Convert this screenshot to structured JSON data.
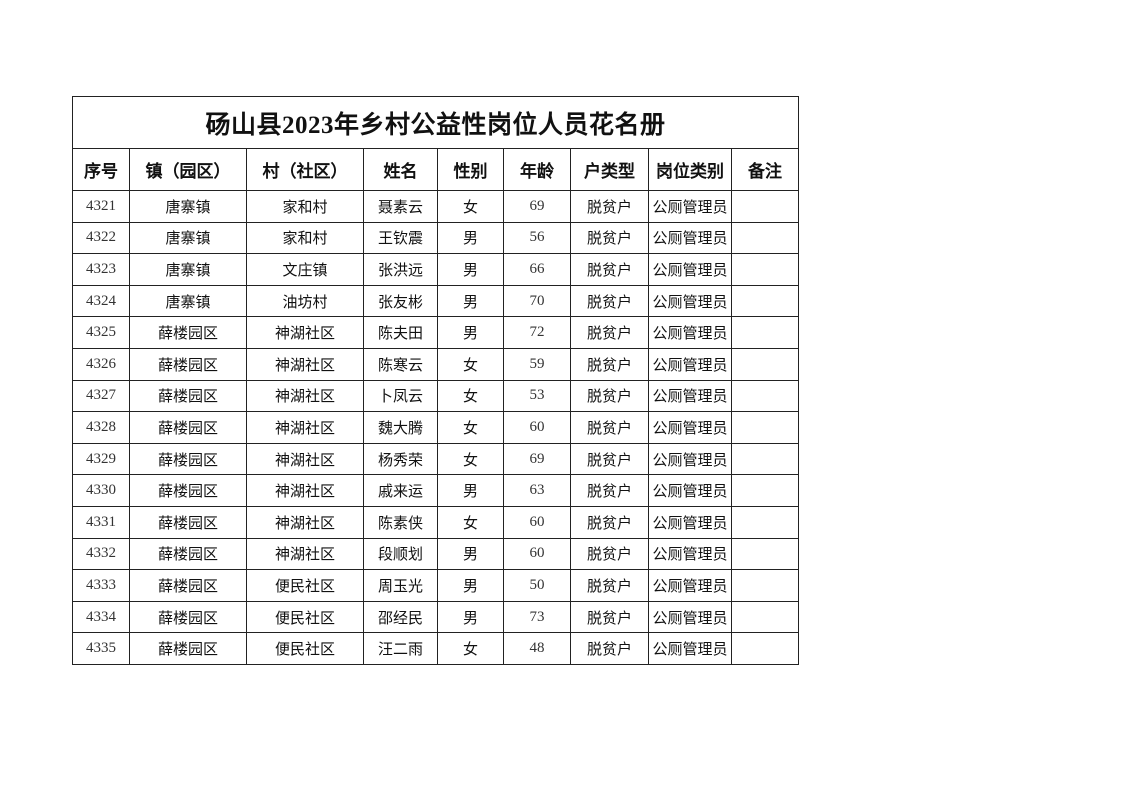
{
  "title": "砀山县2023年乡村公益性岗位人员花名册",
  "headers": [
    "序号",
    "镇（园区）",
    "村（社区）",
    "姓名",
    "性别",
    "年龄",
    "户类型",
    "岗位类别",
    "备注"
  ],
  "rows": [
    [
      "4321",
      "唐寨镇",
      "家和村",
      "聂素云",
      "女",
      "69",
      "脱贫户",
      "公厕管理员",
      ""
    ],
    [
      "4322",
      "唐寨镇",
      "家和村",
      "王钦震",
      "男",
      "56",
      "脱贫户",
      "公厕管理员",
      ""
    ],
    [
      "4323",
      "唐寨镇",
      "文庄镇",
      "张洪远",
      "男",
      "66",
      "脱贫户",
      "公厕管理员",
      ""
    ],
    [
      "4324",
      "唐寨镇",
      "油坊村",
      "张友彬",
      "男",
      "70",
      "脱贫户",
      "公厕管理员",
      ""
    ],
    [
      "4325",
      "薛楼园区",
      "神湖社区",
      "陈夫田",
      "男",
      "72",
      "脱贫户",
      "公厕管理员",
      ""
    ],
    [
      "4326",
      "薛楼园区",
      "神湖社区",
      "陈寒云",
      "女",
      "59",
      "脱贫户",
      "公厕管理员",
      ""
    ],
    [
      "4327",
      "薛楼园区",
      "神湖社区",
      "卜凤云",
      "女",
      "53",
      "脱贫户",
      "公厕管理员",
      ""
    ],
    [
      "4328",
      "薛楼园区",
      "神湖社区",
      "魏大腾",
      "女",
      "60",
      "脱贫户",
      "公厕管理员",
      ""
    ],
    [
      "4329",
      "薛楼园区",
      "神湖社区",
      "杨秀荣",
      "女",
      "69",
      "脱贫户",
      "公厕管理员",
      ""
    ],
    [
      "4330",
      "薛楼园区",
      "神湖社区",
      "戚来运",
      "男",
      "63",
      "脱贫户",
      "公厕管理员",
      ""
    ],
    [
      "4331",
      "薛楼园区",
      "神湖社区",
      "陈素侠",
      "女",
      "60",
      "脱贫户",
      "公厕管理员",
      ""
    ],
    [
      "4332",
      "薛楼园区",
      "神湖社区",
      "段顺划",
      "男",
      "60",
      "脱贫户",
      "公厕管理员",
      ""
    ],
    [
      "4333",
      "薛楼园区",
      "便民社区",
      "周玉光",
      "男",
      "50",
      "脱贫户",
      "公厕管理员",
      ""
    ],
    [
      "4334",
      "薛楼园区",
      "便民社区",
      "邵经民",
      "男",
      "73",
      "脱贫户",
      "公厕管理员",
      ""
    ],
    [
      "4335",
      "薛楼园区",
      "便民社区",
      "汪二雨",
      "女",
      "48",
      "脱贫户",
      "公厕管理员",
      ""
    ]
  ]
}
